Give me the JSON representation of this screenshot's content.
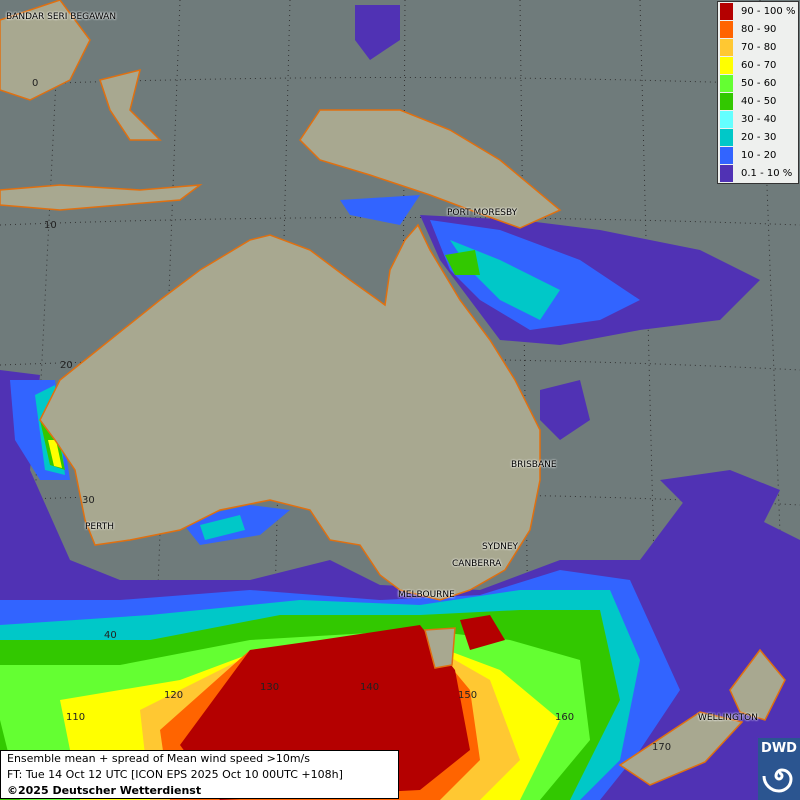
{
  "legend": {
    "items": [
      {
        "label": "90 - 100 %",
        "color": "#b40000"
      },
      {
        "label": "80 - 90",
        "color": "#ff6400"
      },
      {
        "label": "70 - 80",
        "color": "#ffc832"
      },
      {
        "label": "60 - 70",
        "color": "#ffff00"
      },
      {
        "label": "50 - 60",
        "color": "#64ff32"
      },
      {
        "label": "40 - 50",
        "color": "#32c800"
      },
      {
        "label": "30 - 40",
        "color": "#64ffff"
      },
      {
        "label": "20 - 30",
        "color": "#00c8c8"
      },
      {
        "label": "10 - 20",
        "color": "#3264ff"
      },
      {
        "label": "0.1 - 10 %",
        "color": "#5032b4"
      }
    ]
  },
  "cities": {
    "bandar": "BANDAR SERI BEGAWAN",
    "port_moresby": "PORT MORESBY",
    "brisbane": "BRISBANE",
    "sydney": "SYDNEY",
    "canberra": "CANBERRA",
    "melbourne": "MELBOURNE",
    "perth": "PERTH",
    "wellington": "WELLINGTON"
  },
  "grid_labels": {
    "lat0": "0",
    "lat10": "10",
    "lat20": "20",
    "lat30": "30",
    "lat40": "40",
    "lon110": "110",
    "lon120": "120",
    "lon130": "130",
    "lon140": "140",
    "lon150": "150",
    "lon160": "160",
    "lon170": "170"
  },
  "info": {
    "line1": "Ensemble mean + spread of Mean wind speed >10m/s",
    "line2": "FT: Tue 14 Oct 12 UTC [ICON EPS 2025 Oct 10 00UTC +108h]",
    "line3": "©2025 Deutscher Wetterdienst"
  },
  "logo": {
    "text": "DWD"
  },
  "colors": {
    "ocean": "#6f7b7b",
    "land": "#a8a890",
    "coast": "#e07010"
  }
}
